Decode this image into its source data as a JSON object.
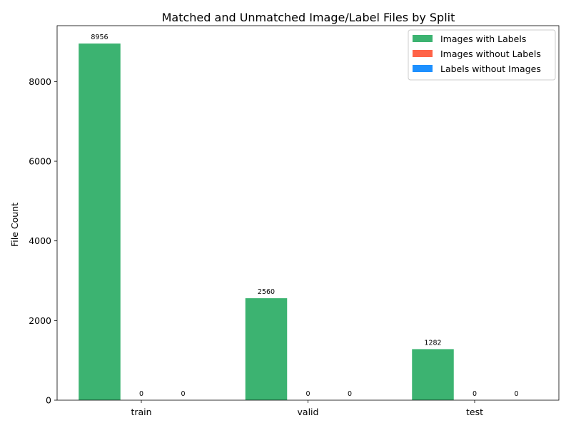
{
  "chart_data": {
    "type": "bar",
    "title": "Matched and Unmatched Image/Label Files by Split",
    "xlabel": "",
    "ylabel": "File Count",
    "categories": [
      "train",
      "valid",
      "test"
    ],
    "series": [
      {
        "name": "Images with Labels",
        "values": [
          8956,
          2560,
          1282
        ],
        "color": "#3cb371"
      },
      {
        "name": "Images without Labels",
        "values": [
          0,
          0,
          0
        ],
        "color": "#ff6347"
      },
      {
        "name": "Labels without Images",
        "values": [
          0,
          0,
          0
        ],
        "color": "#1e90ff"
      }
    ],
    "ylim": [
      0,
      9404
    ],
    "yticks": [
      0,
      2000,
      4000,
      6000,
      8000
    ],
    "grid": false,
    "legend_position": "top-right"
  }
}
